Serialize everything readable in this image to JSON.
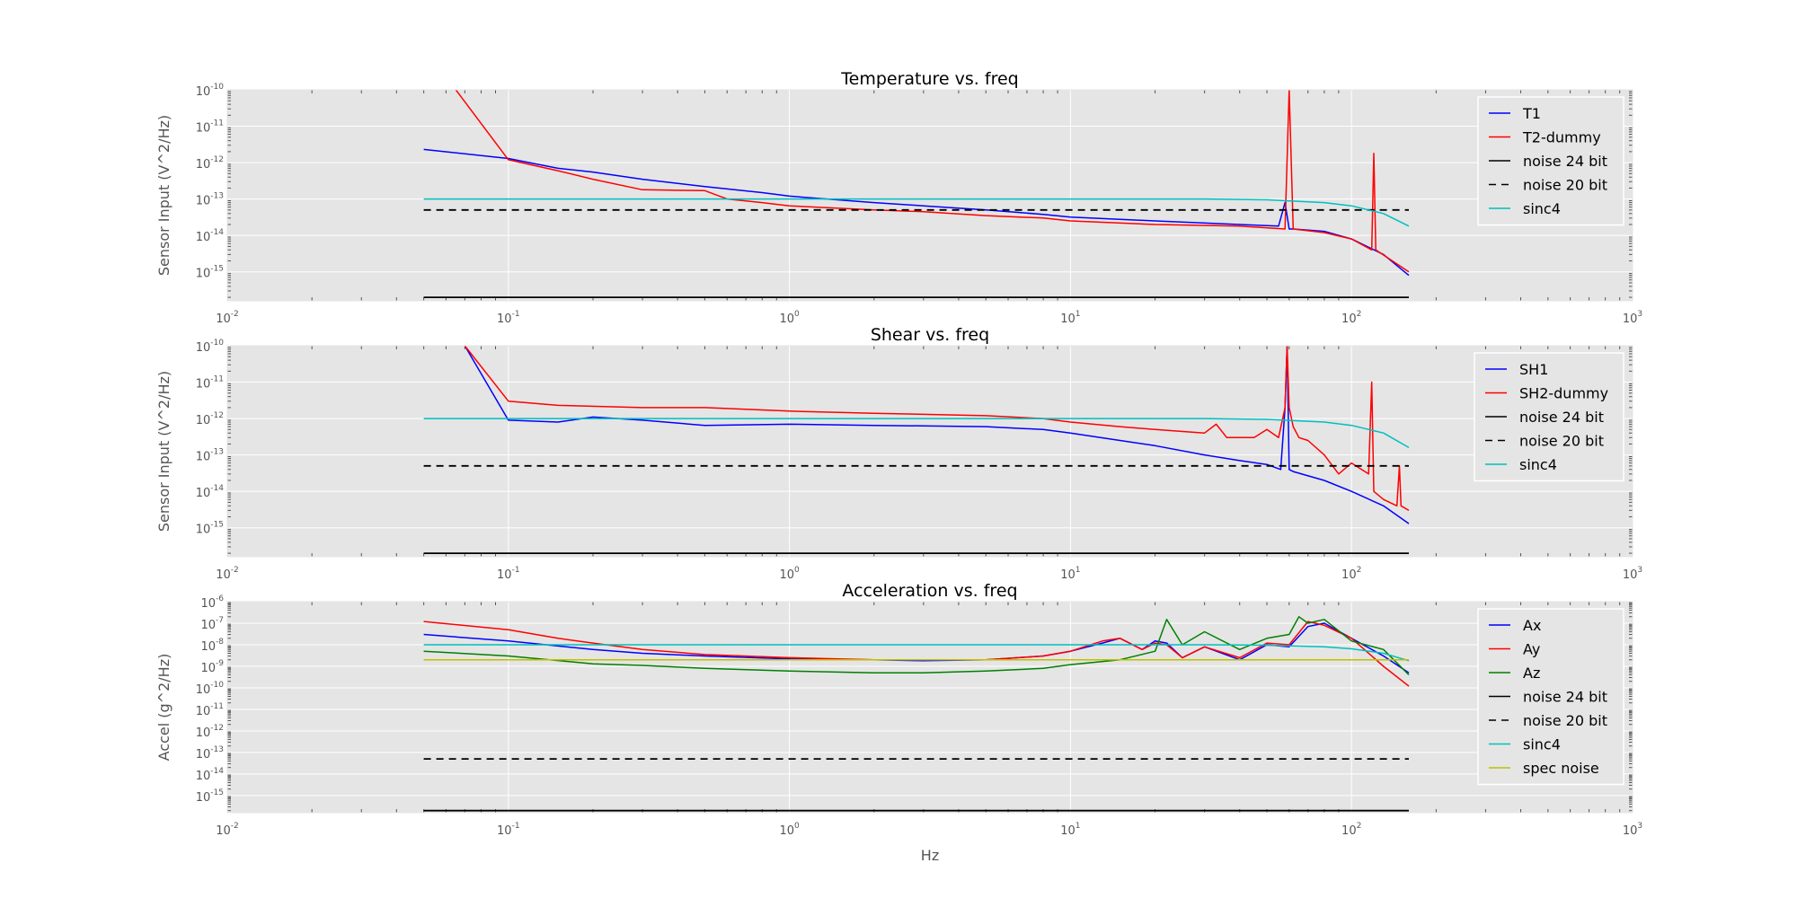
{
  "chart_data": [
    {
      "type": "line",
      "title": "Temperature vs. freq",
      "ylabel": "Sensor Input (V^2/Hz)",
      "xlabel": "",
      "xscale": "log",
      "yscale": "log",
      "xlim": [
        0.01,
        1000
      ],
      "ylim": [
        1.6e-16,
        1e-10
      ],
      "xticks": [
        "10^-2",
        "10^-1",
        "10^0",
        "10^1",
        "10^2",
        "10^3"
      ],
      "yticks": [
        "10^-15",
        "10^-14",
        "10^-13",
        "10^-12",
        "10^-11",
        "10^-10"
      ],
      "grid": true,
      "legend_position": "top-right",
      "series": [
        {
          "name": "T1",
          "color": "#0000ff",
          "style": "solid",
          "x": [
            0.05,
            0.1,
            0.15,
            0.2,
            0.3,
            0.5,
            0.8,
            1,
            2,
            3,
            5,
            8,
            10,
            20,
            40,
            55,
            58,
            60,
            62,
            80,
            100,
            130,
            160
          ],
          "y": [
            2.3e-12,
            1.3e-12,
            7e-13,
            5.5e-13,
            3.5e-13,
            2.2e-13,
            1.5e-13,
            1.2e-13,
            8e-14,
            6.5e-14,
            5e-14,
            3.8e-14,
            3.2e-14,
            2.5e-14,
            2e-14,
            1.8e-14,
            8e-14,
            1.5e-14,
            1.5e-14,
            1.3e-14,
            8e-15,
            3e-15,
            8e-16
          ]
        },
        {
          "name": "T2-dummy",
          "color": "#ff0000",
          "style": "solid",
          "x": [
            0.065,
            0.1,
            0.15,
            0.2,
            0.3,
            0.5,
            0.6,
            0.8,
            1,
            2,
            3,
            5,
            8,
            10,
            20,
            40,
            58,
            60,
            62,
            80,
            100,
            118,
            120,
            122,
            160
          ],
          "y": [
            1e-10,
            1.2e-12,
            6e-13,
            3.5e-13,
            1.8e-13,
            1.7e-13,
            1e-13,
            8e-14,
            6.5e-14,
            5e-14,
            4.5e-14,
            3.5e-14,
            3e-14,
            2.5e-14,
            2e-14,
            1.8e-14,
            1.5e-14,
            1e-10,
            1.5e-14,
            1.2e-14,
            8e-15,
            4e-15,
            1.8e-12,
            4e-15,
            1e-15
          ]
        },
        {
          "name": "noise 24 bit",
          "color": "#000000",
          "style": "solid",
          "x": [
            0.05,
            160
          ],
          "y": [
            2e-16,
            2e-16
          ]
        },
        {
          "name": "noise 20 bit",
          "color": "#000000",
          "style": "dashed",
          "x": [
            0.05,
            160
          ],
          "y": [
            5e-14,
            5e-14
          ]
        },
        {
          "name": "sinc4",
          "color": "#00bfbf",
          "style": "solid",
          "x": [
            0.05,
            1,
            10,
            30,
            50,
            80,
            100,
            130,
            160
          ],
          "y": [
            1e-13,
            1e-13,
            1e-13,
            1e-13,
            9.5e-14,
            8e-14,
            6.5e-14,
            4e-14,
            1.8e-14
          ]
        }
      ]
    },
    {
      "type": "line",
      "title": "Shear vs. freq",
      "ylabel": "Sensor Input (V^2/Hz)",
      "xlabel": "",
      "xscale": "log",
      "yscale": "log",
      "xlim": [
        0.01,
        1000
      ],
      "ylim": [
        1.6e-16,
        1e-10
      ],
      "xticks": [
        "10^-2",
        "10^-1",
        "10^0",
        "10^1",
        "10^2",
        "10^3"
      ],
      "yticks": [
        "10^-15",
        "10^-14",
        "10^-13",
        "10^-12",
        "10^-11",
        "10^-10"
      ],
      "grid": true,
      "legend_position": "top-right",
      "series": [
        {
          "name": "SH1",
          "color": "#0000ff",
          "style": "solid",
          "x": [
            0.07,
            0.1,
            0.15,
            0.2,
            0.3,
            0.5,
            1,
            2,
            5,
            8,
            10,
            15,
            20,
            30,
            40,
            50,
            56,
            58,
            59,
            60,
            62,
            80,
            100,
            130,
            160
          ],
          "y": [
            1e-10,
            9e-13,
            8e-13,
            1.1e-12,
            9e-13,
            6.5e-13,
            7e-13,
            6.5e-13,
            6e-13,
            5e-13,
            4e-13,
            2.5e-13,
            1.8e-13,
            1e-13,
            7e-14,
            5.5e-14,
            4e-14,
            2e-12,
            1e-10,
            4e-14,
            3.5e-14,
            2e-14,
            1e-14,
            4e-15,
            1.3e-15
          ]
        },
        {
          "name": "SH2-dummy",
          "color": "#ff0000",
          "style": "solid",
          "x": [
            0.07,
            0.1,
            0.15,
            0.3,
            0.5,
            1,
            2,
            5,
            8,
            10,
            15,
            20,
            30,
            33,
            36,
            45,
            50,
            55,
            58,
            59,
            60,
            62,
            65,
            70,
            80,
            90,
            100,
            115,
            118,
            120,
            130,
            145,
            148,
            150,
            160
          ],
          "y": [
            1e-10,
            3e-12,
            2.3e-12,
            2e-12,
            2e-12,
            1.6e-12,
            1.4e-12,
            1.2e-12,
            1e-12,
            8e-13,
            6e-13,
            5e-13,
            4e-13,
            7e-13,
            3e-13,
            3e-13,
            5e-13,
            3e-13,
            2e-12,
            1e-10,
            2e-12,
            6e-13,
            3e-13,
            2.5e-13,
            1e-13,
            3e-14,
            6e-14,
            3e-14,
            1e-11,
            1e-14,
            6e-15,
            4e-15,
            5e-14,
            4e-15,
            3e-15
          ]
        },
        {
          "name": "noise 24 bit",
          "color": "#000000",
          "style": "solid",
          "x": [
            0.05,
            160
          ],
          "y": [
            2e-16,
            2e-16
          ]
        },
        {
          "name": "noise 20 bit",
          "color": "#000000",
          "style": "dashed",
          "x": [
            0.05,
            160
          ],
          "y": [
            5e-14,
            5e-14
          ]
        },
        {
          "name": "sinc4",
          "color": "#00bfbf",
          "style": "solid",
          "x": [
            0.05,
            1,
            10,
            30,
            50,
            80,
            100,
            130,
            160
          ],
          "y": [
            1e-12,
            1e-12,
            1e-12,
            1e-12,
            9.5e-13,
            8e-13,
            6.5e-13,
            4e-13,
            1.6e-13
          ]
        }
      ]
    },
    {
      "type": "line",
      "title": "Acceleration vs. freq",
      "ylabel": "Accel (g^2/Hz)",
      "xlabel": "Hz",
      "xscale": "log",
      "yscale": "log",
      "xlim": [
        0.01,
        1000
      ],
      "ylim": [
        1.6e-16,
        1e-06
      ],
      "xticks": [
        "10^-2",
        "10^-1",
        "10^0",
        "10^1",
        "10^2",
        "10^3"
      ],
      "yticks": [
        "10^-15",
        "10^-14",
        "10^-13",
        "10^-12",
        "10^-11",
        "10^-10",
        "10^-9",
        "10^-8",
        "10^-7",
        "10^-6"
      ],
      "grid": true,
      "legend_position": "top-right",
      "series": [
        {
          "name": "Ax",
          "color": "#0000ff",
          "style": "solid",
          "x": [
            0.05,
            0.1,
            0.2,
            0.3,
            0.5,
            1,
            2,
            3,
            5,
            8,
            10,
            13,
            15,
            18,
            20,
            22,
            25,
            30,
            40,
            50,
            60,
            70,
            80,
            100,
            130,
            160
          ],
          "y": [
            3e-08,
            1.5e-08,
            6e-09,
            4e-09,
            3e-09,
            2.2e-09,
            2e-09,
            1.8e-09,
            2e-09,
            3e-09,
            5e-09,
            1.2e-08,
            2e-08,
            6e-09,
            1.5e-08,
            1.2e-08,
            2.5e-09,
            8e-09,
            2e-09,
            1e-08,
            8e-09,
            7e-08,
            1e-07,
            2e-08,
            3e-09,
            5e-10
          ]
        },
        {
          "name": "Ay",
          "color": "#ff0000",
          "style": "solid",
          "x": [
            0.05,
            0.1,
            0.15,
            0.2,
            0.3,
            0.5,
            1,
            2,
            3,
            5,
            8,
            10,
            13,
            15,
            18,
            20,
            22,
            25,
            30,
            40,
            50,
            60,
            70,
            80,
            100,
            130,
            160
          ],
          "y": [
            1.2e-07,
            5e-08,
            2e-08,
            1.2e-08,
            6e-09,
            3.5e-09,
            2.5e-09,
            2e-09,
            2e-09,
            2e-09,
            3e-09,
            5e-09,
            1.5e-08,
            2e-08,
            6e-09,
            1.2e-08,
            1e-08,
            2.5e-09,
            8e-09,
            2.5e-09,
            1.2e-08,
            1e-08,
            1.2e-07,
            8e-08,
            2e-08,
            1e-09,
            1.2e-10
          ]
        },
        {
          "name": "Az",
          "color": "#008000",
          "style": "solid",
          "x": [
            0.05,
            0.1,
            0.2,
            0.3,
            0.5,
            1,
            2,
            3,
            5,
            8,
            10,
            15,
            20,
            22,
            25,
            30,
            40,
            50,
            60,
            65,
            70,
            80,
            100,
            130,
            160
          ],
          "y": [
            5e-09,
            3e-09,
            1.3e-09,
            1.1e-09,
            8e-10,
            6e-10,
            5e-10,
            5e-10,
            6e-10,
            8e-10,
            1.2e-09,
            2e-09,
            5e-09,
            1.5e-07,
            1e-08,
            4e-08,
            6e-09,
            2e-08,
            3e-08,
            2e-07,
            1e-07,
            1.5e-07,
            1.5e-08,
            6e-09,
            4e-10
          ]
        },
        {
          "name": "noise 24 bit",
          "color": "#000000",
          "style": "solid",
          "x": [
            0.05,
            160
          ],
          "y": [
            2e-16,
            2e-16
          ]
        },
        {
          "name": "noise 20 bit",
          "color": "#000000",
          "style": "dashed",
          "x": [
            0.05,
            160
          ],
          "y": [
            5e-14,
            5e-14
          ]
        },
        {
          "name": "sinc4",
          "color": "#00bfbf",
          "style": "solid",
          "x": [
            0.05,
            1,
            10,
            30,
            50,
            80,
            100,
            130,
            160
          ],
          "y": [
            1e-08,
            1e-08,
            1e-08,
            1e-08,
            9.5e-09,
            8e-09,
            6.5e-09,
            4e-09,
            1.8e-09
          ]
        },
        {
          "name": "spec noise",
          "color": "#bfbf00",
          "style": "solid",
          "x": [
            0.05,
            160
          ],
          "y": [
            2e-09,
            2e-09
          ]
        }
      ]
    }
  ]
}
